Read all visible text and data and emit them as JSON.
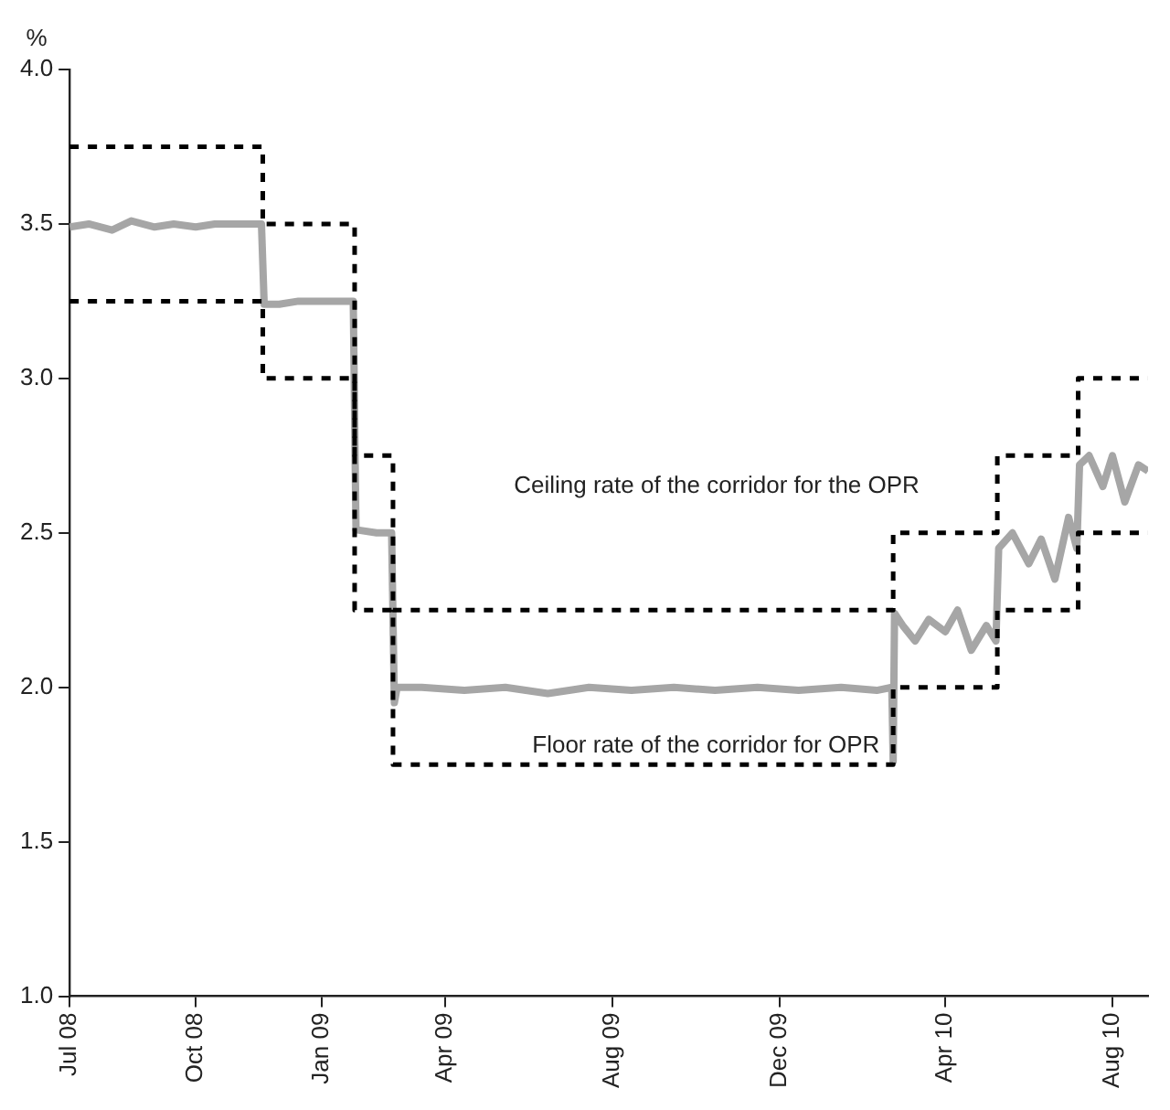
{
  "chart_data": {
    "type": "line",
    "ylabel": "%",
    "xlim": [
      "2008-07-01",
      "2010-08-27"
    ],
    "ylim": [
      1.0,
      4.0
    ],
    "xticks": [
      {
        "value": "2008-07-01",
        "label": "Jul 08"
      },
      {
        "value": "2008-10-01",
        "label": "Oct 08"
      },
      {
        "value": "2009-01-01",
        "label": "Jan 09"
      },
      {
        "value": "2009-04-01",
        "label": "Apr 09"
      },
      {
        "value": "2009-08-01",
        "label": "Aug 09"
      },
      {
        "value": "2009-12-01",
        "label": "Dec 09"
      },
      {
        "value": "2010-04-01",
        "label": "Apr 10"
      },
      {
        "value": "2010-08-01",
        "label": "Aug 10"
      }
    ],
    "yticks": [
      {
        "value": 1.0,
        "label": "1.0"
      },
      {
        "value": 1.5,
        "label": "1.5"
      },
      {
        "value": 2.0,
        "label": "2.0"
      },
      {
        "value": 2.5,
        "label": "2.5"
      },
      {
        "value": 3.0,
        "label": "3.0"
      },
      {
        "value": 3.5,
        "label": "3.5"
      },
      {
        "value": 4.0,
        "label": "4.0"
      }
    ],
    "series": [
      {
        "type": "step",
        "color": "#000000",
        "line_style": "dashed",
        "x": [
          "2008-07-01",
          "2008-11-19",
          "2009-01-25",
          "2009-02-22",
          "2010-02-22",
          "2010-05-09",
          "2010-07-07",
          "2010-08-27"
        ],
        "values": [
          3.75,
          3.5,
          2.75,
          2.25,
          2.5,
          2.75,
          3.0,
          3.0
        ]
      },
      {
        "type": "step",
        "color": "#000000",
        "line_style": "dashed",
        "x": [
          "2008-07-01",
          "2008-11-19",
          "2009-01-25",
          "2009-02-22",
          "2010-02-22",
          "2010-05-09",
          "2010-07-07",
          "2010-08-27"
        ],
        "values": [
          3.25,
          3.0,
          2.25,
          1.75,
          2.0,
          2.25,
          2.5,
          2.5
        ]
      },
      {
        "type": "line",
        "color": "#a6a6a6",
        "line_style": "solid",
        "x": [
          "2008-07-01",
          "2008-07-15",
          "2008-08-01",
          "2008-08-15",
          "2008-09-01",
          "2008-09-15",
          "2008-10-01",
          "2008-10-15",
          "2008-11-01",
          "2008-11-18",
          "2008-11-20",
          "2008-12-01",
          "2008-12-15",
          "2009-01-01",
          "2009-01-24",
          "2009-01-26",
          "2009-02-10",
          "2009-02-21",
          "2009-02-23",
          "2009-02-25",
          "2009-03-15",
          "2009-04-15",
          "2009-05-15",
          "2009-06-15",
          "2009-07-15",
          "2009-08-15",
          "2009-09-15",
          "2009-10-15",
          "2009-11-15",
          "2009-12-15",
          "2010-01-15",
          "2010-02-10",
          "2010-02-21",
          "2010-02-22",
          "2010-02-23",
          "2010-03-01",
          "2010-03-10",
          "2010-03-20",
          "2010-04-01",
          "2010-04-10",
          "2010-04-20",
          "2010-05-01",
          "2010-05-08",
          "2010-05-10",
          "2010-05-20",
          "2010-06-01",
          "2010-06-10",
          "2010-06-20",
          "2010-06-30",
          "2010-07-06",
          "2010-07-08",
          "2010-07-15",
          "2010-07-25",
          "2010-08-01",
          "2010-08-10",
          "2010-08-20",
          "2010-08-27"
        ],
        "values": [
          3.49,
          3.5,
          3.48,
          3.51,
          3.49,
          3.5,
          3.49,
          3.5,
          3.5,
          3.5,
          3.24,
          3.24,
          3.25,
          3.25,
          3.25,
          2.51,
          2.5,
          2.5,
          1.95,
          2.0,
          2.0,
          1.99,
          2.0,
          1.98,
          2.0,
          1.99,
          2.0,
          1.99,
          2.0,
          1.99,
          2.0,
          1.99,
          2.0,
          1.76,
          2.24,
          2.2,
          2.15,
          2.22,
          2.18,
          2.25,
          2.12,
          2.2,
          2.15,
          2.45,
          2.5,
          2.4,
          2.48,
          2.35,
          2.55,
          2.45,
          2.72,
          2.75,
          2.65,
          2.75,
          2.6,
          2.72,
          2.7
        ]
      }
    ],
    "annotations": [
      "Ceiling rate of the corridor for the OPR",
      "Floor rate of the corridor for OPR"
    ]
  }
}
